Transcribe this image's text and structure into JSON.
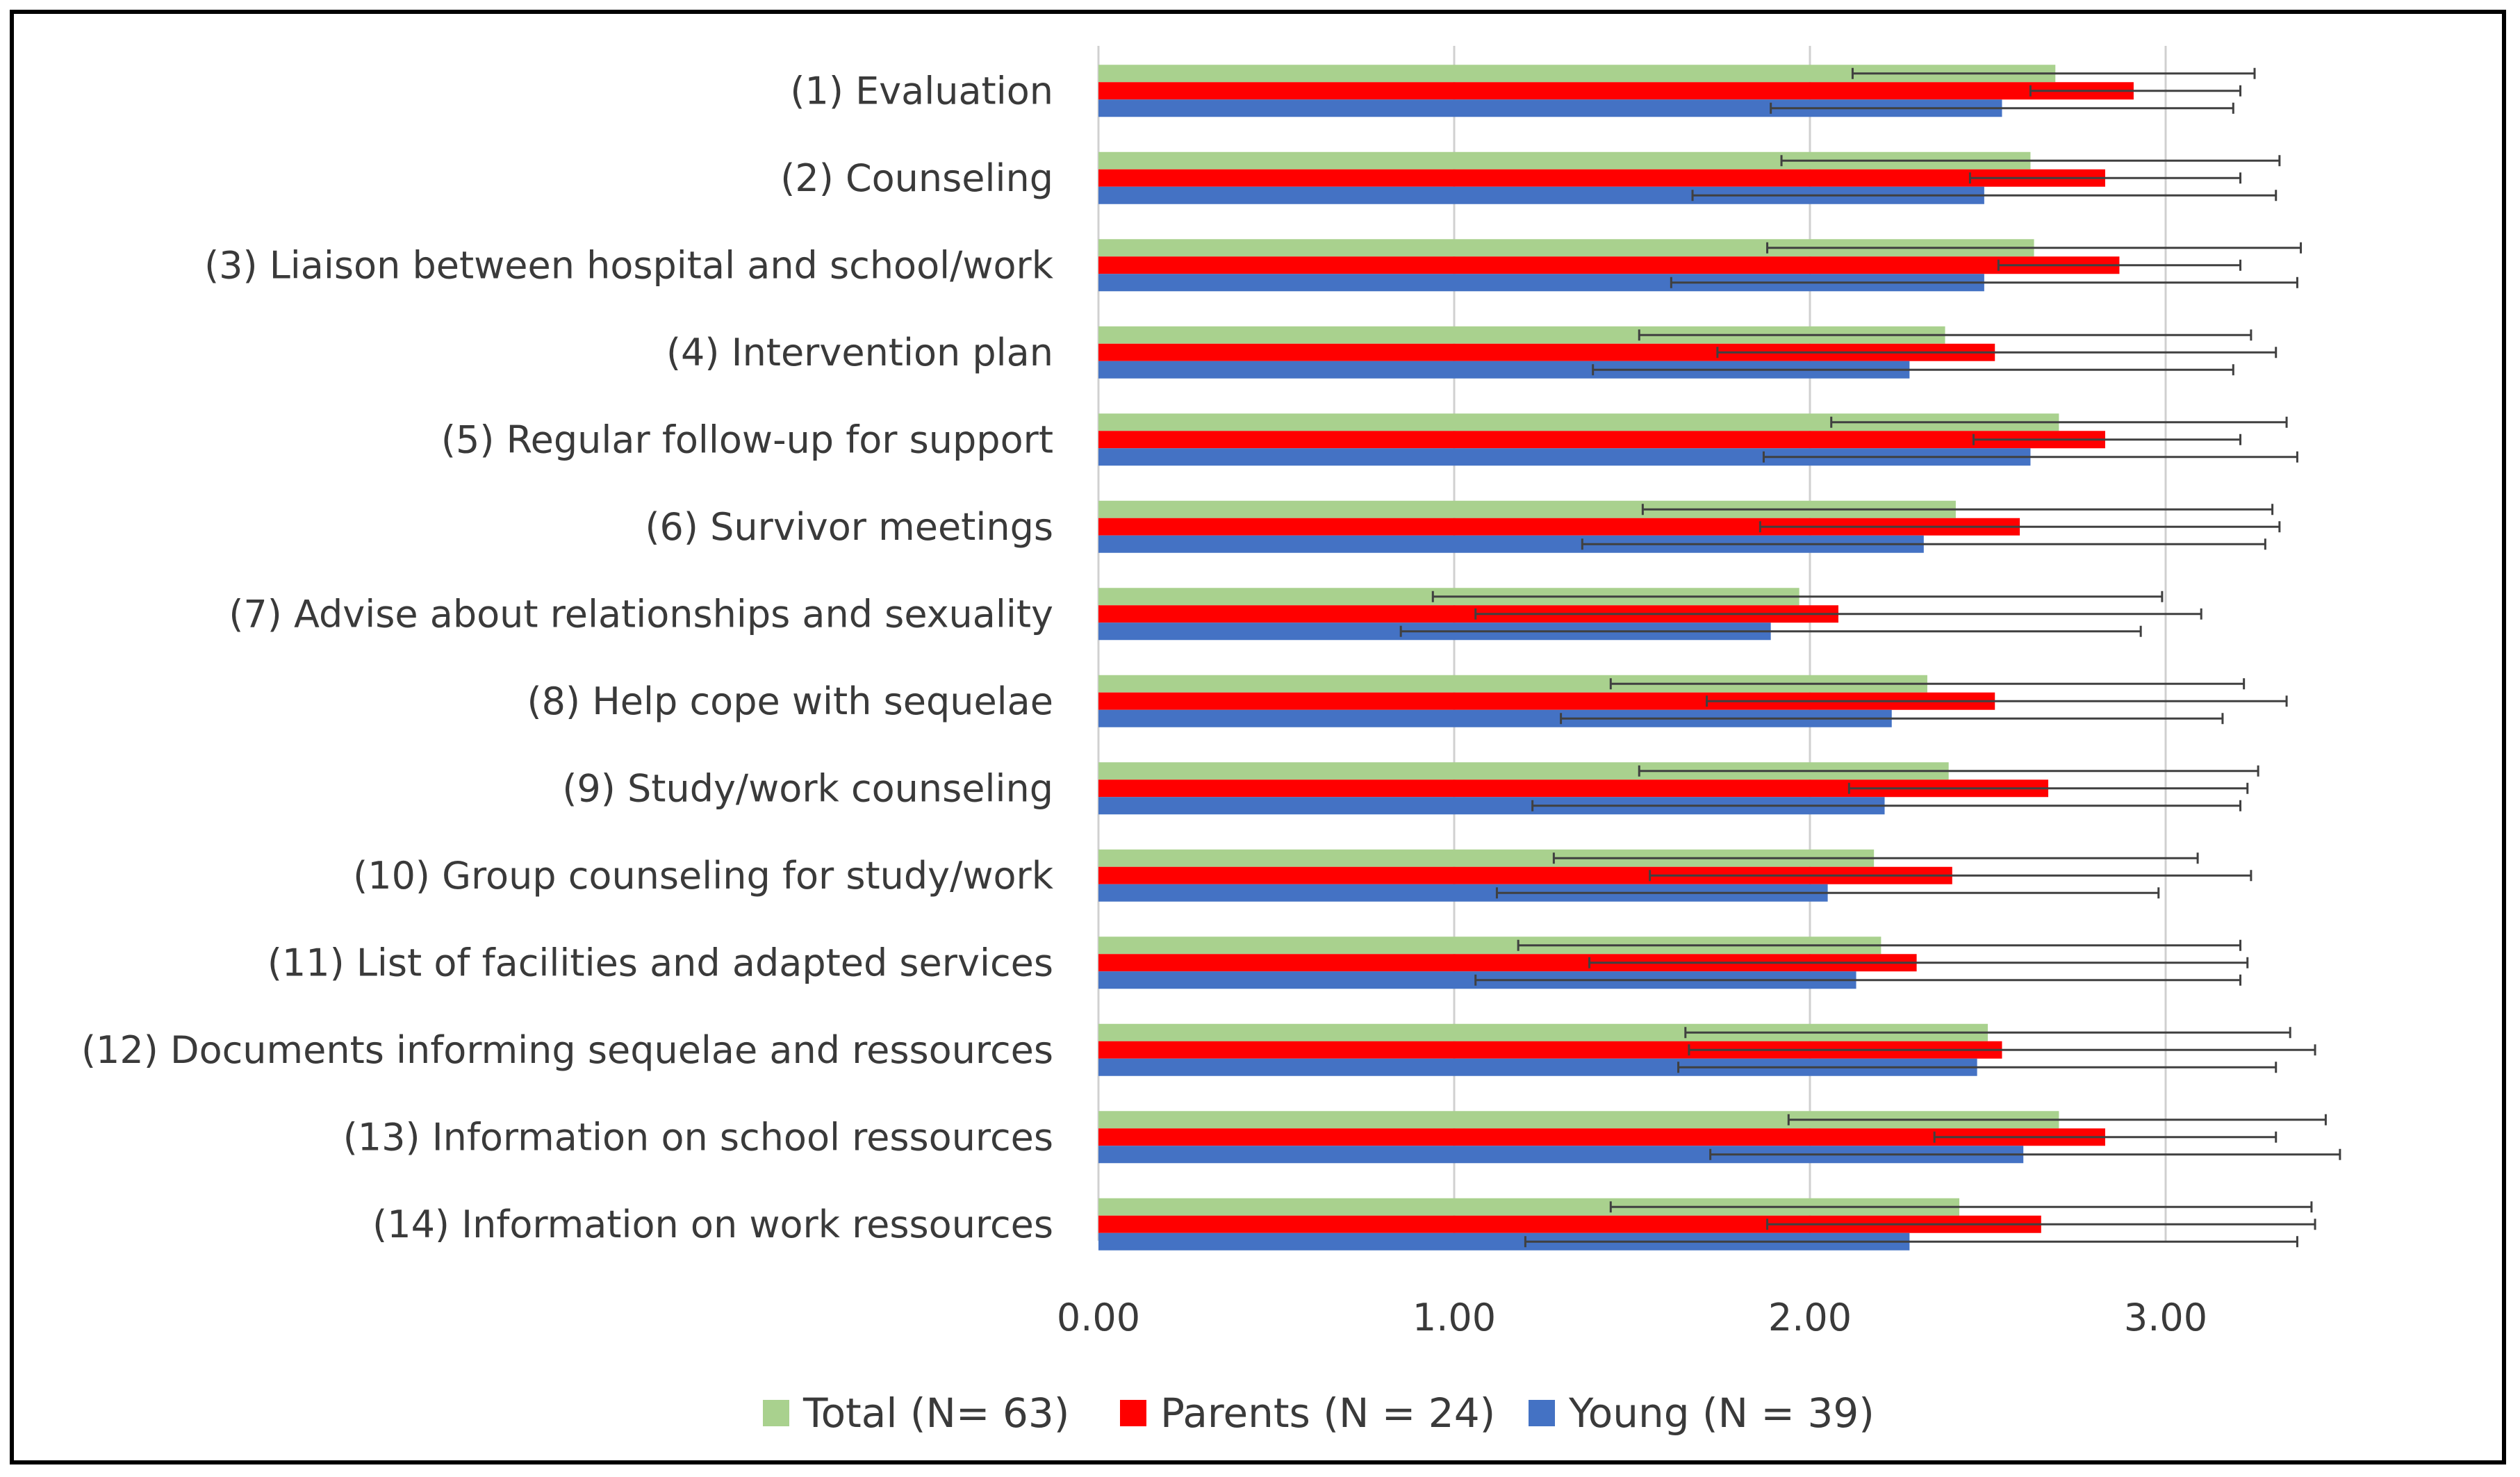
{
  "chart_data": {
    "type": "bar",
    "orientation": "horizontal",
    "title": "",
    "xlabel": "",
    "ylabel": "",
    "xlim": [
      0,
      3.5
    ],
    "ticks": [
      "0.00",
      "1.00",
      "2.00",
      "3.00"
    ],
    "tick_values": [
      0,
      1,
      2,
      3
    ],
    "grid": true,
    "legend_position": "bottom",
    "categories": [
      "(1) Evaluation",
      "(2) Counseling",
      "(3) Liaison between hospital and school/work",
      "(4) Intervention plan",
      "(5) Regular follow-up for support",
      "(6) Survivor meetings",
      "(7) Advise about relationships and sexuality",
      "(8) Help cope with sequelae",
      "(9) Study/work counseling",
      "(10) Group counseling for study/work",
      "(11) List of facilities and adapted services",
      "(12) Documents informing sequelae and ressources",
      "(13) Information on school ressources",
      "(14) Information on work ressources"
    ],
    "series": [
      {
        "name": "Total (N= 63)",
        "color": "#a9d18e",
        "values": [
          2.69,
          2.62,
          2.63,
          2.38,
          2.7,
          2.41,
          1.97,
          2.33,
          2.39,
          2.18,
          2.2,
          2.5,
          2.7,
          2.42
        ],
        "err_low": [
          2.12,
          1.92,
          1.88,
          1.52,
          2.06,
          1.53,
          0.94,
          1.44,
          1.52,
          1.28,
          1.18,
          1.65,
          1.94,
          1.44
        ],
        "err_high": [
          3.25,
          3.32,
          3.38,
          3.24,
          3.34,
          3.3,
          2.99,
          3.22,
          3.26,
          3.09,
          3.21,
          3.35,
          3.45,
          3.41
        ]
      },
      {
        "name": "Parents (N = 24)",
        "color": "#ff0000",
        "values": [
          2.91,
          2.83,
          2.87,
          2.52,
          2.83,
          2.59,
          2.08,
          2.52,
          2.67,
          2.4,
          2.3,
          2.54,
          2.83,
          2.65
        ],
        "err_low": [
          2.62,
          2.45,
          2.53,
          1.74,
          2.46,
          1.86,
          1.06,
          1.71,
          2.11,
          1.55,
          1.38,
          1.66,
          2.35,
          1.88
        ],
        "err_high": [
          3.21,
          3.21,
          3.21,
          3.31,
          3.21,
          3.32,
          3.1,
          3.34,
          3.23,
          3.24,
          3.23,
          3.42,
          3.31,
          3.42
        ]
      },
      {
        "name": "Young (N = 39)",
        "color": "#4472c4",
        "values": [
          2.54,
          2.49,
          2.49,
          2.28,
          2.62,
          2.32,
          1.89,
          2.23,
          2.21,
          2.05,
          2.13,
          2.47,
          2.6,
          2.28
        ],
        "err_low": [
          1.89,
          1.67,
          1.61,
          1.39,
          1.87,
          1.36,
          0.85,
          1.3,
          1.22,
          1.12,
          1.06,
          1.63,
          1.72,
          1.2
        ],
        "err_high": [
          3.19,
          3.31,
          3.37,
          3.19,
          3.37,
          3.28,
          2.93,
          3.16,
          3.21,
          2.98,
          3.21,
          3.31,
          3.49,
          3.37
        ]
      }
    ]
  }
}
